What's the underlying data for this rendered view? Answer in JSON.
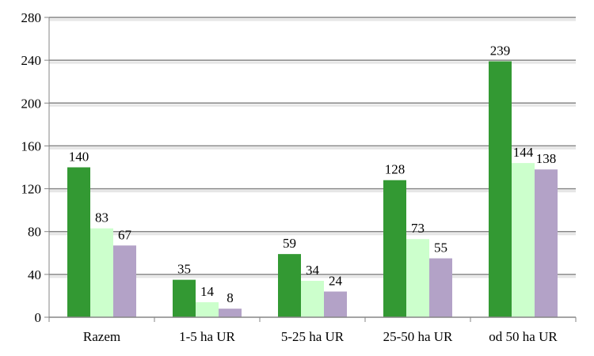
{
  "chart_data": {
    "type": "bar",
    "title": "",
    "xlabel": "",
    "ylabel": "",
    "ylim": [
      0,
      280
    ],
    "yticks": [
      0,
      40,
      80,
      120,
      160,
      200,
      240,
      280
    ],
    "grid": true,
    "categories": [
      "Razem",
      "1-5 ha UR",
      "5-25 ha UR",
      "25-50 ha UR",
      "od 50 ha UR"
    ],
    "series": [
      {
        "color": "#339933",
        "values": [
          140,
          35,
          59,
          128,
          239
        ]
      },
      {
        "color": "#ccffcc",
        "values": [
          83,
          14,
          34,
          73,
          144
        ]
      },
      {
        "color": "#b3a2c7",
        "values": [
          67,
          8,
          24,
          55,
          138
        ]
      }
    ]
  }
}
